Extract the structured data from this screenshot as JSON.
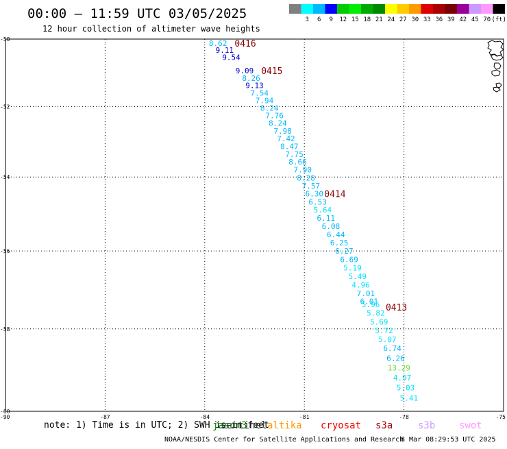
{
  "header": {
    "title": "00:00 – 11:59 UTC 03/05/2025",
    "subtitle": "12 hour collection of altimeter wave heights"
  },
  "colorbar": {
    "segments": [
      {
        "color": "#808080",
        "label": ""
      },
      {
        "color": "#00ffff",
        "label": "3"
      },
      {
        "color": "#00b8ff",
        "label": "6"
      },
      {
        "color": "#0000ff",
        "label": "9"
      },
      {
        "color": "#00cc00",
        "label": "12"
      },
      {
        "color": "#00ee00",
        "label": "15"
      },
      {
        "color": "#00aa00",
        "label": "18"
      },
      {
        "color": "#008800",
        "label": "21"
      },
      {
        "color": "#ffff00",
        "label": "24"
      },
      {
        "color": "#ffcc00",
        "label": "27"
      },
      {
        "color": "#ff9900",
        "label": "30"
      },
      {
        "color": "#dd0000",
        "label": "33"
      },
      {
        "color": "#aa0000",
        "label": "36"
      },
      {
        "color": "#770000",
        "label": "39"
      },
      {
        "color": "#990099",
        "label": "42"
      },
      {
        "color": "#cc99ff",
        "label": "45"
      },
      {
        "color": "#ff99ff",
        "label": "70"
      },
      {
        "color": "#000000",
        "label": "(ft)"
      }
    ]
  },
  "map": {
    "lon_range": [
      -90,
      -75
    ],
    "lat_range": [
      -60,
      -50
    ],
    "x_ticks": [
      {
        "value": -90,
        "label": "-90"
      },
      {
        "value": -87,
        "label": "-87"
      },
      {
        "value": -84,
        "label": "-84"
      },
      {
        "value": -81,
        "label": "-81"
      },
      {
        "value": -78,
        "label": "-78"
      },
      {
        "value": -75,
        "label": "-75"
      }
    ],
    "y_ticks": [
      {
        "value": -50,
        "label": "-50"
      },
      {
        "value": -52,
        "label": "-52"
      },
      {
        "value": -54,
        "label": "-54"
      },
      {
        "value": -56,
        "label": "-56"
      },
      {
        "value": -58,
        "label": "-58"
      },
      {
        "value": -60,
        "label": "-60"
      }
    ],
    "grid": true
  },
  "track": {
    "points": [
      {
        "lon": -83.6,
        "lat": -50.12,
        "label": "8.62",
        "color": "#00b8ff"
      },
      {
        "lon": -83.4,
        "lat": -50.33,
        "label": "9.11",
        "color": "#0000cc"
      },
      {
        "lon": -83.2,
        "lat": -50.55,
        "label": "9.54",
        "color": "#0000cc"
      },
      {
        "lon": -82.8,
        "lat": -50.95,
        "label": "9.09",
        "color": "#0000cc"
      },
      {
        "lon": -82.6,
        "lat": -51.17,
        "label": "8.26",
        "color": "#00b8ff"
      },
      {
        "lon": -82.5,
        "lat": -51.38,
        "label": "9.13",
        "color": "#0000cc"
      },
      {
        "lon": -82.35,
        "lat": -51.6,
        "label": "7.54",
        "color": "#00b8ff"
      },
      {
        "lon": -82.2,
        "lat": -51.82,
        "label": "7.94",
        "color": "#00b8ff"
      },
      {
        "lon": -82.05,
        "lat": -52.04,
        "label": "8.24",
        "color": "#00b8ff"
      },
      {
        "lon": -81.9,
        "lat": -52.26,
        "label": "7.76",
        "color": "#00b8ff"
      },
      {
        "lon": -81.8,
        "lat": -52.48,
        "label": "8.24",
        "color": "#00b8ff"
      },
      {
        "lon": -81.65,
        "lat": -52.7,
        "label": "7.98",
        "color": "#00b8ff"
      },
      {
        "lon": -81.55,
        "lat": -52.92,
        "label": "7.42",
        "color": "#00b8ff"
      },
      {
        "lon": -81.45,
        "lat": -53.14,
        "label": "8.47",
        "color": "#00b8ff"
      },
      {
        "lon": -81.3,
        "lat": -53.36,
        "label": "7.75",
        "color": "#00b8ff"
      },
      {
        "lon": -81.2,
        "lat": -53.58,
        "label": "8.66",
        "color": "#00b8ff"
      },
      {
        "lon": -81.05,
        "lat": -53.8,
        "label": "7.90",
        "color": "#00b8ff"
      },
      {
        "lon": -80.95,
        "lat": -54.02,
        "label": "8.28",
        "color": "#00b8ff"
      },
      {
        "lon": -80.8,
        "lat": -54.24,
        "label": "7.57",
        "color": "#00b8ff"
      },
      {
        "lon": -80.7,
        "lat": -54.46,
        "label": "6.30",
        "color": "#00b8ff"
      },
      {
        "lon": -80.6,
        "lat": -54.68,
        "label": "6.53",
        "color": "#00b8ff"
      },
      {
        "lon": -80.45,
        "lat": -54.9,
        "label": "5.64",
        "color": "#00e0ff"
      },
      {
        "lon": -80.35,
        "lat": -55.12,
        "label": "6.11",
        "color": "#00b8ff"
      },
      {
        "lon": -80.2,
        "lat": -55.34,
        "label": "6.08",
        "color": "#00b8ff"
      },
      {
        "lon": -80.05,
        "lat": -55.56,
        "label": "6.44",
        "color": "#00b8ff"
      },
      {
        "lon": -79.95,
        "lat": -55.78,
        "label": "6.25",
        "color": "#00b8ff"
      },
      {
        "lon": -79.8,
        "lat": -56.0,
        "label": "6.27",
        "color": "#00b8ff"
      },
      {
        "lon": -79.65,
        "lat": -56.22,
        "label": "6.69",
        "color": "#00b8ff"
      },
      {
        "lon": -79.55,
        "lat": -56.44,
        "label": "5.19",
        "color": "#00e0ff"
      },
      {
        "lon": -79.4,
        "lat": -56.66,
        "label": "5.49",
        "color": "#00e0ff"
      },
      {
        "lon": -79.3,
        "lat": -56.88,
        "label": "4.96",
        "color": "#00e0ff"
      },
      {
        "lon": -79.15,
        "lat": -57.1,
        "label": "7.01",
        "color": "#00b8ff"
      },
      {
        "lon": -79.05,
        "lat": -57.3,
        "label": "6.01",
        "color": "#00b8ff"
      },
      {
        "lon": -79.0,
        "lat": -57.38,
        "label": "5.96",
        "color": "#00e0ff"
      },
      {
        "lon": -78.85,
        "lat": -57.6,
        "label": "5.82",
        "color": "#00e0ff"
      },
      {
        "lon": -78.75,
        "lat": -57.82,
        "label": "5.69",
        "color": "#00e0ff"
      },
      {
        "lon": -78.6,
        "lat": -58.04,
        "label": "5.72",
        "color": "#00e0ff"
      },
      {
        "lon": -78.5,
        "lat": -58.26,
        "label": "5.07",
        "color": "#00e0ff"
      },
      {
        "lon": -78.35,
        "lat": -58.48,
        "label": "6.74",
        "color": "#00b8ff"
      },
      {
        "lon": -78.25,
        "lat": -58.72,
        "label": "6.26",
        "color": "#00b8ff"
      },
      {
        "lon": -78.15,
        "lat": -58.96,
        "label": "13.29",
        "color": "#66dd33"
      },
      {
        "lon": -78.05,
        "lat": -59.2,
        "label": "4.97",
        "color": "#00e0ff"
      },
      {
        "lon": -77.95,
        "lat": -59.44,
        "label": "5.03",
        "color": "#00e0ff"
      },
      {
        "lon": -77.85,
        "lat": -59.68,
        "label": "5.41",
        "color": "#00e0ff"
      }
    ],
    "time_labels": [
      {
        "lon": -83.1,
        "lat": -50.12,
        "label": "0416",
        "color": "#880000"
      },
      {
        "lon": -82.3,
        "lat": -50.95,
        "label": "0415",
        "color": "#880000"
      },
      {
        "lon": -80.4,
        "lat": -54.46,
        "label": "0414",
        "color": "#880000"
      },
      {
        "lon": -78.55,
        "lat": -57.45,
        "label": "0413",
        "color": "#880000"
      }
    ]
  },
  "satellites": [
    {
      "name": "jason3",
      "color": "#008800"
    },
    {
      "name": "sentinel",
      "color": "#333333"
    },
    {
      "name": "altika",
      "color": "#ff9900"
    },
    {
      "name": "cryosat",
      "color": "#ee0000"
    },
    {
      "name": "s3a",
      "color": "#aa0000"
    },
    {
      "name": "s3b",
      "color": "#cc99ff"
    },
    {
      "name": "swot",
      "color": "#ff99ff"
    }
  ],
  "footer": {
    "note": "note: 1) Time is in UTC; 2) SWH is in feet",
    "credit": "NOAA/NESDIS Center for Satellite Applications and Research",
    "timestamp": "8 Mar 08:29:53 UTC 2025"
  }
}
